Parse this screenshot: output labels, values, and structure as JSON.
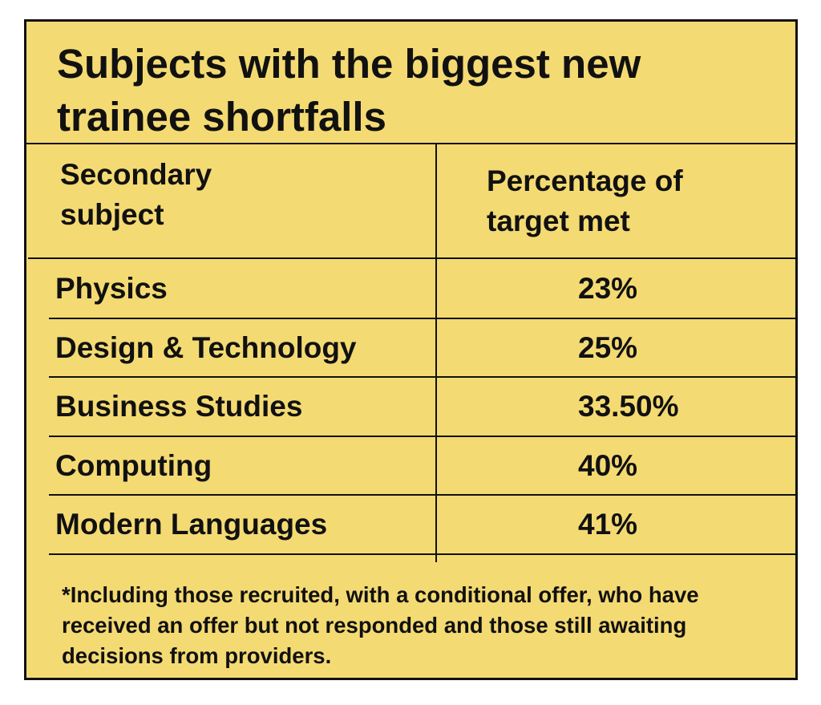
{
  "title": "Subjects with the biggest new trainee shortfalls",
  "table": {
    "header": [
      "Secondary subject",
      "Percentage of target met"
    ],
    "rows": [
      [
        "Physics",
        "23%"
      ],
      [
        "Design & Technology",
        "25%"
      ],
      [
        "Business Studies",
        "33.50%"
      ],
      [
        "Computing",
        "40%"
      ],
      [
        "Modern Languages",
        "41%"
      ]
    ]
  },
  "footnote": "*Including those recruited, with a conditional offer, who have received an offer but not responded and those still awaiting decisions from providers."
}
